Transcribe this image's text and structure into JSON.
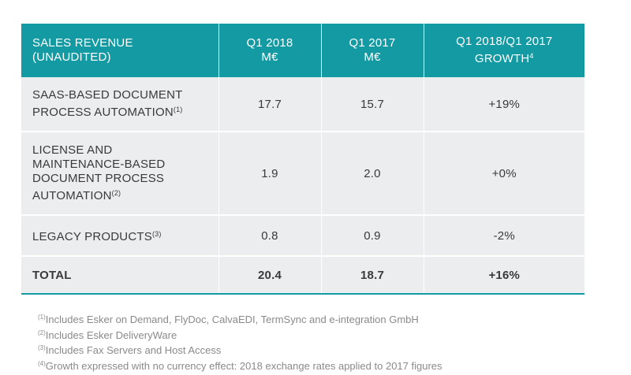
{
  "header": {
    "col1_line1": "SALES REVENUE",
    "col1_line2": "(UNAUDITED)",
    "col2_line1": "Q1 2018",
    "col2_line2": "M€",
    "col3_line1": "Q1 2017",
    "col3_line2": "M€",
    "col4_line1": "Q1 2018/Q1 2017",
    "col4_line2": "GROWTH",
    "col4_sup": "4"
  },
  "rows": [
    {
      "lines": [
        "SAAS-BASED DOCUMENT",
        "PROCESS AUTOMATION"
      ],
      "sup": "(1)",
      "q1_2018": "17.7",
      "q1_2017": "15.7",
      "growth": "+19%"
    },
    {
      "lines": [
        "LICENSE AND",
        "MAINTENANCE-BASED",
        "DOCUMENT PROCESS",
        "AUTOMATION"
      ],
      "sup": "(2)",
      "q1_2018": "1.9",
      "q1_2017": "2.0",
      "growth": "+0%"
    },
    {
      "lines": [
        "LEGACY PRODUCTS"
      ],
      "sup": "(3)",
      "q1_2018": "0.8",
      "q1_2017": "0.9",
      "growth": "-2%"
    }
  ],
  "total": {
    "label": "TOTAL",
    "q1_2018": "20.4",
    "q1_2017": "18.7",
    "growth": "+16%"
  },
  "footnotes": [
    {
      "mark": "(1)",
      "text": "Includes Esker on Demand, FlyDoc, CalvaEDI, TermSync and e-integration GmbH"
    },
    {
      "mark": "(2)",
      "text": "Includes Esker DeliveryWare"
    },
    {
      "mark": "(3)",
      "text": "Includes Fax Servers and Host Access"
    },
    {
      "mark": "(4)",
      "text": "Growth expressed with no currency effect: 2018 exchange rates applied to 2017 figures"
    }
  ],
  "colors": {
    "header_bg": "#139aa2",
    "row_bg": "#ebedee",
    "text": "#3a3a3a",
    "footnote": "#8a8a8a"
  }
}
